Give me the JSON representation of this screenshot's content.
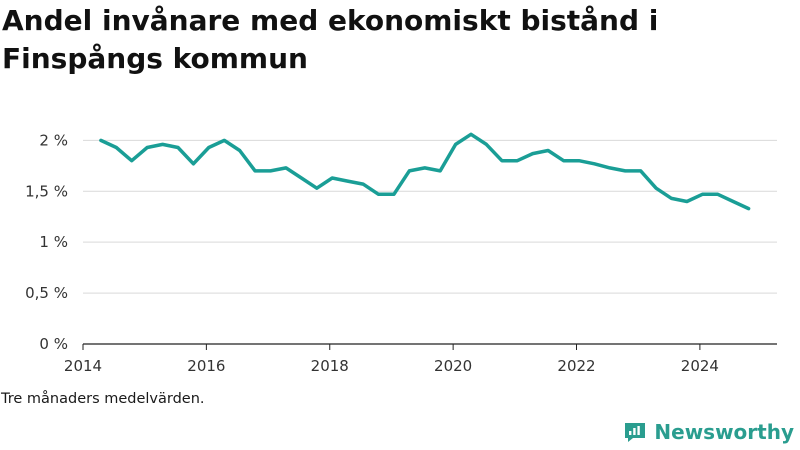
{
  "title": "Andel invånare med ekonomiskt bistånd i Finspångs kommun",
  "note": "Tre månaders medelvärden.",
  "brand": "Newsworthy",
  "colors": {
    "line": "#1a9e96",
    "grid": "#d9d9d9",
    "axis": "#222222",
    "brand": "#2a9d8f"
  },
  "chart_data": {
    "type": "line",
    "title": "Andel invånare med ekonomiskt bistånd i Finspångs kommun",
    "xlabel": "",
    "ylabel": "",
    "ylim": [
      0,
      2.2
    ],
    "xlim": [
      2014,
      2025.25
    ],
    "y_ticks": [
      0,
      0.5,
      1,
      1.5,
      2
    ],
    "y_tick_labels": [
      "0 %",
      "0,5 %",
      "1 %",
      "1,5 %",
      "2 %"
    ],
    "x_ticks": [
      2014,
      2016,
      2018,
      2020,
      2022,
      2024
    ],
    "x_tick_labels": [
      "2014",
      "2016",
      "2018",
      "2020",
      "2022",
      "2024"
    ],
    "grid": true,
    "series": [
      {
        "x": [
          2014.29,
          2014.54,
          2014.79,
          2015.04,
          2015.29,
          2015.54,
          2015.79,
          2016.04,
          2016.29,
          2016.54,
          2016.79,
          2017.04,
          2017.29,
          2017.54,
          2017.79,
          2018.04,
          2018.29,
          2018.54,
          2018.79,
          2019.04,
          2019.29,
          2019.54,
          2019.79,
          2020.04,
          2020.29,
          2020.54,
          2020.79,
          2021.04,
          2021.29,
          2021.54,
          2021.79,
          2022.04,
          2022.29,
          2022.54,
          2022.79,
          2023.04,
          2023.29,
          2023.54,
          2023.79,
          2024.04,
          2024.29,
          2024.54,
          2024.79
        ],
        "values": [
          2.0,
          1.93,
          1.8,
          1.93,
          1.96,
          1.93,
          1.77,
          1.93,
          2.0,
          1.9,
          1.7,
          1.7,
          1.73,
          1.63,
          1.53,
          1.63,
          1.6,
          1.57,
          1.47,
          1.47,
          1.7,
          1.73,
          1.7,
          1.96,
          2.06,
          1.96,
          1.8,
          1.8,
          1.87,
          1.9,
          1.8,
          1.8,
          1.77,
          1.73,
          1.7,
          1.7,
          1.53,
          1.43,
          1.4,
          1.47,
          1.47,
          1.4,
          1.33
        ]
      }
    ]
  }
}
